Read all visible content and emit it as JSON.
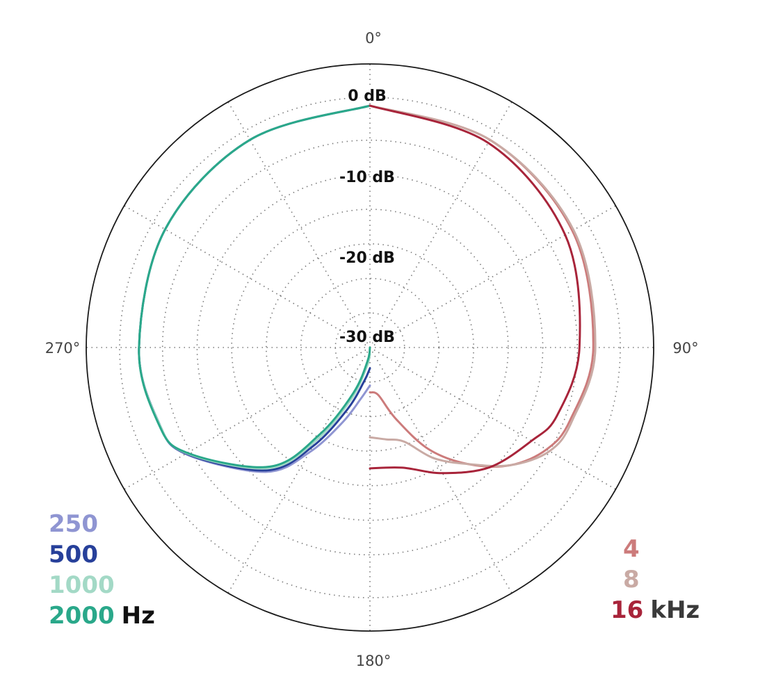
{
  "chart_data": {
    "type": "polar-line",
    "angle_labels": [
      "0°",
      "90°",
      "180°",
      "270°"
    ],
    "angle_ticks_deg": [
      0,
      90,
      180,
      270
    ],
    "radial_labels": [
      "0 dB",
      "-10 dB",
      "-20 dB",
      "-30 dB"
    ],
    "radial_label_values_db": [
      0,
      -10,
      -20,
      -30
    ],
    "rlim_db": [
      -35,
      0
    ],
    "grid": true,
    "grid_circles_db": [
      -5,
      -10,
      -15,
      -20,
      -25,
      -30
    ],
    "grid_spokes_every_deg": 30,
    "legend_left": {
      "unit": "Hz",
      "unit_color": "#111111",
      "entries": [
        {
          "label": "250",
          "color": "#8f95d2"
        },
        {
          "label": "500",
          "color": "#27409a"
        },
        {
          "label": "1000",
          "color": "#a3d9c6"
        },
        {
          "label": "2000",
          "color": "#2aa88a"
        }
      ]
    },
    "legend_right": {
      "unit": "kHz",
      "unit_color": "#3a3a3a",
      "entries": [
        {
          "label": "4",
          "color": "#cc7b7b"
        },
        {
          "label": "8",
          "color": "#c9aaa4"
        },
        {
          "label": "16",
          "color": "#a8243a"
        }
      ]
    },
    "series": [
      {
        "name": "250",
        "side": "left",
        "color": "#8f95d2",
        "angles_deg": [
          0,
          30,
          60,
          90,
          110,
          120,
          140,
          150,
          160,
          170,
          180
        ],
        "values_db": [
          0,
          -0.3,
          -0.8,
          -1.6,
          -2.6,
          -4.2,
          -11.5,
          -17.5,
          -23.5,
          -27.5,
          -29.5
        ]
      },
      {
        "name": "500",
        "side": "left",
        "color": "#27409a",
        "angles_deg": [
          0,
          30,
          60,
          90,
          110,
          120,
          140,
          150,
          160,
          170,
          180
        ],
        "values_db": [
          0,
          -0.3,
          -0.8,
          -1.6,
          -2.6,
          -4.3,
          -11.8,
          -18.5,
          -25.5,
          -30,
          -32
        ]
      },
      {
        "name": "1000",
        "side": "left",
        "color": "#a3d9c6",
        "angles_deg": [
          0,
          30,
          60,
          90,
          110,
          120,
          140,
          150,
          160,
          170,
          180
        ],
        "values_db": [
          0,
          -0.3,
          -0.8,
          -1.6,
          -2.6,
          -4.4,
          -12.2,
          -19.5,
          -27,
          -32,
          -34
        ]
      },
      {
        "name": "2000",
        "side": "left",
        "color": "#2aa88a",
        "angles_deg": [
          0,
          30,
          60,
          90,
          110,
          120,
          140,
          150,
          160,
          170,
          180
        ],
        "values_db": [
          0,
          -0.3,
          -0.8,
          -1.6,
          -2.5,
          -4.5,
          -12.5,
          -20.5,
          -28,
          -33,
          -35
        ]
      },
      {
        "name": "4",
        "side": "right",
        "color": "#cc7b7b",
        "angles_deg": [
          0,
          30,
          60,
          90,
          110,
          120,
          130,
          140,
          150,
          160,
          170,
          180
        ],
        "values_db": [
          0,
          -0.3,
          -1.2,
          -2.7,
          -4.2,
          -5.5,
          -8.5,
          -13,
          -18,
          -24,
          -28,
          -28.5
        ]
      },
      {
        "name": "8",
        "side": "right",
        "color": "#c9aaa4",
        "angles_deg": [
          0,
          30,
          60,
          90,
          110,
          120,
          130,
          140,
          150,
          160,
          170,
          180
        ],
        "values_db": [
          0,
          -0.3,
          -1.0,
          -2.4,
          -3.9,
          -5,
          -8.5,
          -13,
          -16.5,
          -20.5,
          -21.5,
          -22
        ]
      },
      {
        "name": "16",
        "side": "right",
        "color": "#a8243a",
        "angles_deg": [
          0,
          30,
          60,
          90,
          110,
          120,
          135,
          150,
          165,
          180
        ],
        "values_db": [
          0,
          -0.8,
          -2.4,
          -4.7,
          -6.2,
          -8,
          -10.5,
          -14,
          -17,
          -17.5
        ]
      }
    ]
  }
}
